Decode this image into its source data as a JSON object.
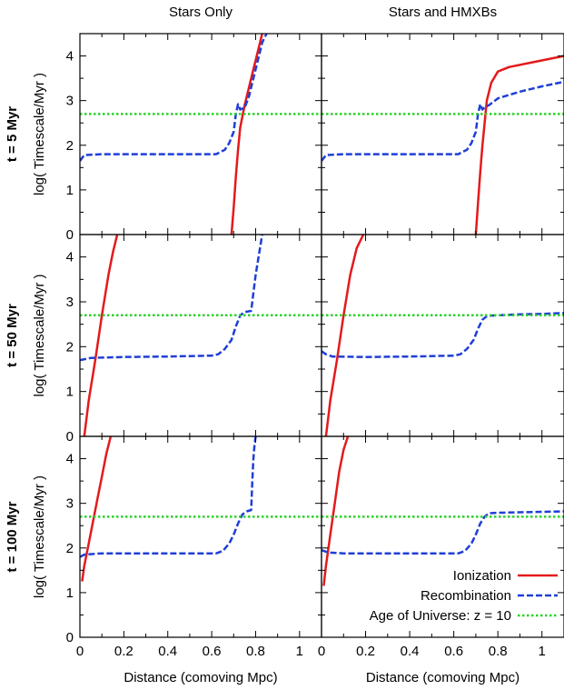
{
  "chart_data": {
    "type": "line",
    "column_titles": [
      "Stars Only",
      "Stars and HMXBs"
    ],
    "row_labels": [
      "t = 5 Myr",
      "t = 50 Myr",
      "t = 100 Myr"
    ],
    "xlabel": "Distance (comoving Mpc)",
    "ylabel": "log( Timescale/Myr )",
    "xlim": [
      0,
      1.1
    ],
    "ylim": [
      0,
      4.5
    ],
    "xticks": [
      "0",
      "0.2",
      "0.4",
      "0.6",
      "0.8",
      "1"
    ],
    "yticks": [
      "0",
      "1",
      "2",
      "3",
      "4"
    ],
    "grid": false,
    "legend_position": "bottom-right of last panel",
    "legend": [
      {
        "label": "Ionization",
        "color": "#e41a1c",
        "style": "solid"
      },
      {
        "label": "Recombination",
        "color": "#1f3fd6",
        "style": "dashed"
      },
      {
        "label": "Age of Universe: z = 10",
        "color": "#2cd12c",
        "style": "dotted"
      }
    ],
    "panels": [
      {
        "row": 0,
        "col": 0,
        "series": [
          {
            "name": "Ionization",
            "x": [
              0.69,
              0.7,
              0.71,
              0.72,
              0.73,
              0.75,
              0.77,
              0.79,
              0.81,
              0.83
            ],
            "y": [
              0,
              0.6,
              1.3,
              1.9,
              2.4,
              2.9,
              3.3,
              3.7,
              4.1,
              4.5
            ]
          },
          {
            "name": "Recombination",
            "x": [
              0.0,
              0.02,
              0.1,
              0.3,
              0.5,
              0.62,
              0.66,
              0.68,
              0.7,
              0.71,
              0.72,
              0.73,
              0.74,
              0.75,
              0.77,
              0.79,
              0.81,
              0.83,
              0.85
            ],
            "y": [
              1.65,
              1.78,
              1.8,
              1.8,
              1.8,
              1.8,
              1.9,
              2.05,
              2.3,
              2.7,
              2.92,
              2.8,
              2.82,
              2.84,
              3.1,
              3.5,
              3.9,
              4.3,
              4.5
            ]
          },
          {
            "name": "Age of Universe: z = 10",
            "x": [
              0,
              1.1
            ],
            "y": [
              2.7,
              2.7
            ]
          }
        ]
      },
      {
        "row": 0,
        "col": 1,
        "series": [
          {
            "name": "Ionization",
            "x": [
              0.7,
              0.71,
              0.72,
              0.73,
              0.74,
              0.75,
              0.77,
              0.8,
              0.85,
              0.95,
              1.05,
              1.1
            ],
            "y": [
              0,
              0.7,
              1.4,
              2.0,
              2.5,
              3.0,
              3.4,
              3.65,
              3.75,
              3.85,
              3.95,
              4.0
            ]
          },
          {
            "name": "Recombination",
            "x": [
              0.0,
              0.02,
              0.1,
              0.3,
              0.5,
              0.62,
              0.66,
              0.68,
              0.7,
              0.71,
              0.72,
              0.73,
              0.74,
              0.76,
              0.8,
              0.9,
              1.0,
              1.1
            ],
            "y": [
              1.65,
              1.78,
              1.8,
              1.8,
              1.8,
              1.8,
              1.9,
              2.05,
              2.3,
              2.7,
              2.92,
              2.8,
              2.85,
              2.9,
              3.05,
              3.2,
              3.32,
              3.42
            ]
          },
          {
            "name": "Age of Universe: z = 10",
            "x": [
              0,
              1.1
            ],
            "y": [
              2.7,
              2.7
            ]
          }
        ]
      },
      {
        "row": 1,
        "col": 0,
        "series": [
          {
            "name": "Ionization",
            "x": [
              0.02,
              0.04,
              0.07,
              0.1,
              0.13,
              0.15,
              0.17
            ],
            "y": [
              0,
              0.8,
              1.7,
              2.7,
              3.6,
              4.1,
              4.5
            ]
          },
          {
            "name": "Recombination",
            "x": [
              0.0,
              0.05,
              0.2,
              0.4,
              0.6,
              0.63,
              0.66,
              0.69,
              0.71,
              0.73,
              0.75,
              0.77,
              0.78,
              0.79,
              0.8,
              0.81,
              0.82,
              0.83
            ],
            "y": [
              1.7,
              1.75,
              1.77,
              1.78,
              1.8,
              1.83,
              1.95,
              2.15,
              2.45,
              2.7,
              2.77,
              2.79,
              2.8,
              3.2,
              3.6,
              3.9,
              4.2,
              4.5
            ]
          },
          {
            "name": "Age of Universe: z = 10",
            "x": [
              0,
              1.1
            ],
            "y": [
              2.7,
              2.7
            ]
          }
        ]
      },
      {
        "row": 1,
        "col": 1,
        "series": [
          {
            "name": "Ionization",
            "x": [
              0.02,
              0.04,
              0.07,
              0.1,
              0.13,
              0.16,
              0.19
            ],
            "y": [
              0,
              0.8,
              1.7,
              2.7,
              3.6,
              4.2,
              4.5
            ]
          },
          {
            "name": "Recombination",
            "x": [
              0.0,
              0.02,
              0.05,
              0.2,
              0.4,
              0.6,
              0.63,
              0.66,
              0.69,
              0.71,
              0.73,
              0.75,
              0.76,
              0.8,
              0.9,
              1.0,
              1.1
            ],
            "y": [
              1.9,
              1.83,
              1.78,
              1.77,
              1.78,
              1.8,
              1.83,
              1.95,
              2.15,
              2.4,
              2.6,
              2.68,
              2.69,
              2.7,
              2.72,
              2.73,
              2.75
            ]
          },
          {
            "name": "Age of Universe: z = 10",
            "x": [
              0,
              1.1
            ],
            "y": [
              2.7,
              2.7
            ]
          }
        ]
      },
      {
        "row": 2,
        "col": 0,
        "series": [
          {
            "name": "Ionization",
            "x": [
              0.01,
              0.02,
              0.04,
              0.06,
              0.08,
              0.1,
              0.12,
              0.14
            ],
            "y": [
              1.25,
              1.6,
              2.1,
              2.6,
              3.1,
              3.6,
              4.1,
              4.5
            ]
          },
          {
            "name": "Recombination",
            "x": [
              0.0,
              0.02,
              0.1,
              0.3,
              0.5,
              0.62,
              0.65,
              0.68,
              0.7,
              0.72,
              0.74,
              0.76,
              0.78,
              0.785,
              0.79,
              0.795,
              0.8
            ],
            "y": [
              1.8,
              1.85,
              1.88,
              1.88,
              1.88,
              1.88,
              1.93,
              2.1,
              2.3,
              2.55,
              2.75,
              2.82,
              2.85,
              3.5,
              4.0,
              4.3,
              4.5
            ]
          },
          {
            "name": "Age of Universe: z = 10",
            "x": [
              0,
              1.1
            ],
            "y": [
              2.7,
              2.7
            ]
          }
        ]
      },
      {
        "row": 2,
        "col": 1,
        "series": [
          {
            "name": "Ionization",
            "x": [
              0.01,
              0.02,
              0.04,
              0.06,
              0.08,
              0.1,
              0.12
            ],
            "y": [
              1.15,
              1.6,
              2.3,
              3.0,
              3.7,
              4.2,
              4.5
            ]
          },
          {
            "name": "Recombination",
            "x": [
              0.0,
              0.03,
              0.1,
              0.3,
              0.5,
              0.62,
              0.65,
              0.68,
              0.7,
              0.72,
              0.74,
              0.76,
              0.8,
              0.9,
              1.0,
              1.1
            ],
            "y": [
              1.95,
              1.9,
              1.88,
              1.88,
              1.88,
              1.88,
              1.93,
              2.1,
              2.3,
              2.55,
              2.7,
              2.78,
              2.79,
              2.8,
              2.81,
              2.82
            ]
          },
          {
            "name": "Age of Universe: z = 10",
            "x": [
              0,
              1.1
            ],
            "y": [
              2.7,
              2.7
            ]
          }
        ]
      }
    ]
  }
}
